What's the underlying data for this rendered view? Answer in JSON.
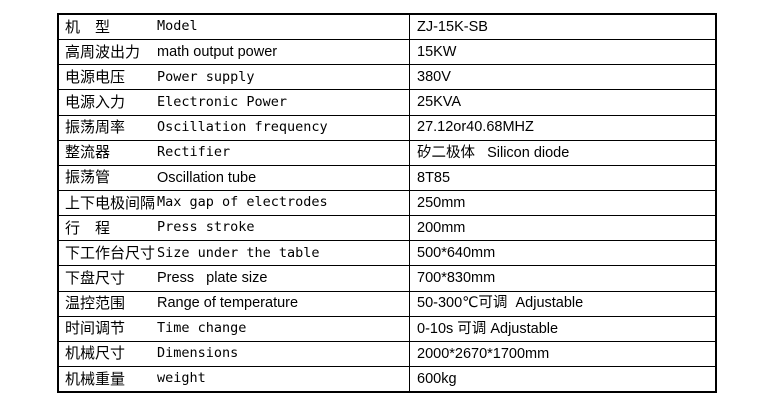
{
  "table": {
    "rows": [
      {
        "label_cn": "机　型",
        "label_en": "Model",
        "value": "ZJ-15K-SB",
        "latin_mono": true
      },
      {
        "label_cn": "高周波出力",
        "label_en": "math output power",
        "value": "15KW",
        "latin_mono": false
      },
      {
        "label_cn": "电源电压",
        "label_en": "Power supply",
        "value": "380V",
        "latin_mono": true
      },
      {
        "label_cn": "电源入力",
        "label_en": "Electronic Power",
        "value": "25KVA",
        "latin_mono": true
      },
      {
        "label_cn": "振荡周率",
        "label_en": "Oscillation frequency",
        "value": "27.12or40.68MHZ",
        "latin_mono": true
      },
      {
        "label_cn": "整流器",
        "label_en": "Rectifier",
        "value": "矽二极体   Silicon diode",
        "latin_mono": true
      },
      {
        "label_cn": "振荡管",
        "label_en": "Oscillation tube",
        "value": "8T85",
        "latin_mono": false
      },
      {
        "label_cn": "上下电极间隔",
        "label_en": "Max gap of electrodes",
        "value": "250mm",
        "latin_mono": true
      },
      {
        "label_cn": "行　程",
        "label_en": "Press stroke",
        "value": "200mm",
        "latin_mono": true
      },
      {
        "label_cn": "下工作台尺寸",
        "label_en": "Size under the table",
        "value": "500*640mm",
        "latin_mono": true
      },
      {
        "label_cn": "下盘尺寸",
        "label_en": "Press   plate size",
        "value": "700*830mm",
        "latin_mono": false
      },
      {
        "label_cn": "温控范围",
        "label_en": "Range of temperature",
        "value": "50-300℃可调  Adjustable",
        "latin_mono": false
      },
      {
        "label_cn": "时间调节",
        "label_en": "Time change",
        "value": "0-10s 可调 Adjustable",
        "latin_mono": true
      },
      {
        "label_cn": "机械尺寸",
        "label_en": "Dimensions",
        "value": "2000*2670*1700mm",
        "latin_mono": true
      },
      {
        "label_cn": "机械重量",
        "label_en": "weight",
        "value": "600kg",
        "latin_mono": true
      }
    ]
  }
}
